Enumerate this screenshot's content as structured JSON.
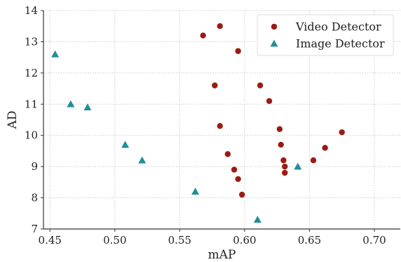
{
  "chart_data": {
    "type": "scatter",
    "xlabel": "mAP",
    "ylabel": "AD",
    "xlim": [
      0.445,
      0.72
    ],
    "ylim": [
      7,
      14
    ],
    "x_ticks": [
      0.45,
      0.5,
      0.55,
      0.6,
      0.65,
      0.7
    ],
    "x_tick_labels": [
      "0.45",
      "0.50",
      "0.55",
      "0.60",
      "0.65",
      "0.70"
    ],
    "y_ticks": [
      7,
      8,
      9,
      10,
      11,
      12,
      13,
      14
    ],
    "y_tick_labels": [
      "7",
      "8",
      "9",
      "10",
      "11",
      "12",
      "13",
      "14"
    ],
    "grid": true,
    "legend_position": "top-right",
    "series": [
      {
        "name": "Video Detector",
        "marker": "circle",
        "color": "#9b1b14",
        "points": [
          {
            "x": 0.568,
            "y": 13.2
          },
          {
            "x": 0.581,
            "y": 13.5
          },
          {
            "x": 0.595,
            "y": 12.7
          },
          {
            "x": 0.577,
            "y": 11.6
          },
          {
            "x": 0.612,
            "y": 11.6
          },
          {
            "x": 0.619,
            "y": 11.1
          },
          {
            "x": 0.581,
            "y": 10.3
          },
          {
            "x": 0.627,
            "y": 10.2
          },
          {
            "x": 0.675,
            "y": 10.1
          },
          {
            "x": 0.628,
            "y": 9.7
          },
          {
            "x": 0.662,
            "y": 9.6
          },
          {
            "x": 0.587,
            "y": 9.4
          },
          {
            "x": 0.63,
            "y": 9.2
          },
          {
            "x": 0.653,
            "y": 9.2
          },
          {
            "x": 0.631,
            "y": 9.0
          },
          {
            "x": 0.592,
            "y": 8.9
          },
          {
            "x": 0.631,
            "y": 8.8
          },
          {
            "x": 0.595,
            "y": 8.6
          },
          {
            "x": 0.598,
            "y": 8.1
          }
        ]
      },
      {
        "name": "Image Detector",
        "marker": "triangle",
        "color": "#1f8f99",
        "points": [
          {
            "x": 0.454,
            "y": 12.6
          },
          {
            "x": 0.466,
            "y": 11.0
          },
          {
            "x": 0.479,
            "y": 10.9
          },
          {
            "x": 0.508,
            "y": 9.7
          },
          {
            "x": 0.521,
            "y": 9.2
          },
          {
            "x": 0.562,
            "y": 8.2
          },
          {
            "x": 0.641,
            "y": 9.0
          },
          {
            "x": 0.61,
            "y": 7.3
          }
        ]
      }
    ]
  }
}
